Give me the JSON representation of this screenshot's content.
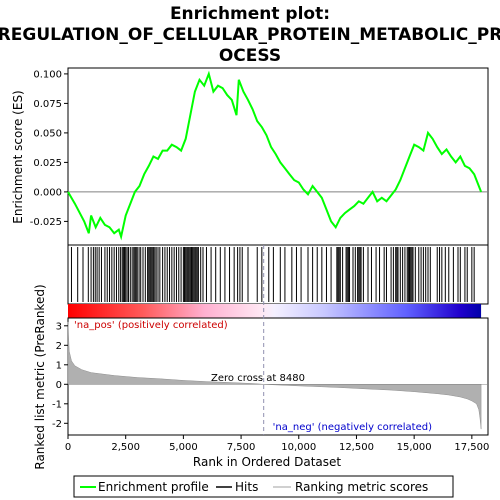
{
  "chart_data": {
    "type": "line",
    "title_lines": [
      "Enrichment plot:",
      "REGULATION_OF_CELLULAR_PROTEIN_METABOLIC_PR",
      "OCESS"
    ],
    "x_label": "Rank in Ordered Dataset",
    "es_panel": {
      "ylabel": "Enrichment score (ES)",
      "ylim": [
        -0.045,
        0.105
      ],
      "yticks": [
        "0.100",
        "0.075",
        "0.050",
        "0.025",
        "0.000",
        "-0.025"
      ],
      "series": [
        {
          "name": "Enrichment profile",
          "color": "#00ff00",
          "x": [
            0,
            300,
            700,
            900,
            1000,
            1200,
            1400,
            1600,
            1800,
            2000,
            2200,
            2300,
            2500,
            2700,
            2900,
            3100,
            3300,
            3500,
            3700,
            3900,
            4100,
            4300,
            4500,
            4700,
            4900,
            5100,
            5300,
            5500,
            5700,
            5900,
            6100,
            6300,
            6500,
            6700,
            6900,
            7100,
            7300,
            7400,
            7600,
            7800,
            8000,
            8200,
            8400,
            8600,
            8800,
            9000,
            9200,
            9400,
            9600,
            9800,
            10000,
            10200,
            10400,
            10600,
            10800,
            11000,
            11200,
            11400,
            11600,
            11800,
            12000,
            12200,
            12400,
            12600,
            12800,
            13000,
            13200,
            13400,
            13600,
            13800,
            14000,
            14200,
            14400,
            14600,
            14800,
            15000,
            15200,
            15400,
            15600,
            15800,
            16000,
            16200,
            16400,
            16600,
            16800,
            17000,
            17200,
            17400,
            17600,
            17800,
            17900
          ],
          "y": [
            0.0,
            -0.01,
            -0.025,
            -0.035,
            -0.02,
            -0.03,
            -0.022,
            -0.028,
            -0.03,
            -0.035,
            -0.032,
            -0.038,
            -0.02,
            -0.01,
            0.0,
            0.005,
            0.015,
            0.022,
            0.03,
            0.028,
            0.035,
            0.035,
            0.04,
            0.038,
            0.035,
            0.045,
            0.065,
            0.085,
            0.095,
            0.09,
            0.1,
            0.085,
            0.09,
            0.088,
            0.082,
            0.078,
            0.065,
            0.095,
            0.085,
            0.078,
            0.07,
            0.06,
            0.055,
            0.048,
            0.038,
            0.032,
            0.025,
            0.02,
            0.015,
            0.01,
            0.008,
            0.002,
            -0.002,
            0.005,
            0.0,
            -0.005,
            -0.015,
            -0.025,
            -0.03,
            -0.022,
            -0.018,
            -0.015,
            -0.012,
            -0.008,
            -0.01,
            -0.005,
            0.0,
            -0.008,
            -0.005,
            -0.008,
            -0.003,
            0.002,
            0.01,
            0.02,
            0.03,
            0.04,
            0.038,
            0.035,
            0.05,
            0.045,
            0.038,
            0.032,
            0.036,
            0.03,
            0.025,
            0.03,
            0.022,
            0.02,
            0.015,
            0.005,
            0.0
          ]
        }
      ]
    },
    "hits": {
      "name": "Hits",
      "positions": [
        150,
        420,
        650,
        880,
        1000,
        1100,
        1180,
        1260,
        1350,
        1450,
        1600,
        1700,
        1800,
        1900,
        2000,
        2100,
        2200,
        2280,
        2350,
        2400,
        2450,
        2500,
        2560,
        2620,
        2700,
        2780,
        2850,
        2900,
        2950,
        3000,
        3080,
        3150,
        3250,
        3350,
        3450,
        3500,
        3550,
        3600,
        3650,
        3700,
        3760,
        3820,
        3900,
        3980,
        4100,
        4200,
        4300,
        4400,
        4500,
        4600,
        4700,
        4800,
        4900,
        5000,
        5050,
        5100,
        5150,
        5200,
        5250,
        5300,
        5350,
        5400,
        5450,
        5500,
        5550,
        5600,
        5650,
        5750,
        5850,
        6000,
        6200,
        6400,
        6600,
        6800,
        7000,
        7200,
        7350,
        7450,
        7550,
        7800,
        8200,
        8400,
        8700,
        8900,
        9200,
        9400,
        9700,
        9900,
        10100,
        10400,
        10600,
        10800,
        11000,
        11200,
        11400,
        11650,
        11700,
        11750,
        11800,
        11900,
        12050,
        12100,
        12150,
        12200,
        12350,
        12450,
        12550,
        12600,
        12650,
        12700,
        12800,
        13000,
        13150,
        13350,
        13500,
        13700,
        13800,
        14000,
        14100,
        14200,
        14250,
        14300,
        14400,
        14500,
        14600,
        14700,
        14750,
        14800,
        14850,
        14900,
        14950,
        15050,
        15200,
        15300,
        15400,
        15500,
        15600,
        15700,
        16000,
        16100,
        16200,
        16350,
        16500,
        16700,
        16900,
        17000,
        17200,
        17300,
        17500,
        17600
      ]
    },
    "metric_panel": {
      "ylabel": "Ranked list metric (PreRanked)",
      "ylim": [
        -2.6,
        3.4
      ],
      "yticks": [
        "3",
        "2",
        "1",
        "0",
        "-1",
        "-2"
      ],
      "x": [
        0,
        50,
        150,
        300,
        600,
        1000,
        2000,
        3000,
        4000,
        5000,
        6000,
        7000,
        8000,
        8480,
        9000,
        10000,
        11000,
        12000,
        13000,
        14000,
        15000,
        16000,
        16500,
        17000,
        17300,
        17500,
        17700,
        17800,
        17850,
        17900
      ],
      "values": [
        3.2,
        1.7,
        1.2,
        0.95,
        0.75,
        0.6,
        0.45,
        0.35,
        0.28,
        0.2,
        0.14,
        0.09,
        0.04,
        0.0,
        -0.03,
        -0.08,
        -0.13,
        -0.18,
        -0.24,
        -0.3,
        -0.38,
        -0.48,
        -0.55,
        -0.65,
        -0.75,
        -0.85,
        -1.0,
        -1.3,
        -1.7,
        -2.3
      ],
      "zero_cross_label": "Zero cross at 8480",
      "zero_cross_value": 8480,
      "pos_label": "'na_pos' (positively correlated)",
      "neg_label": "'na_neg' (negatively correlated)",
      "pos_color": "#cc0000",
      "neg_color": "#0000cc"
    },
    "xlim": [
      0,
      18200
    ],
    "xticks": [
      "0",
      "2,500",
      "5,000",
      "7,500",
      "10,000",
      "12,500",
      "15,000",
      "17,500"
    ],
    "xtick_values": [
      0,
      2500,
      5000,
      7500,
      10000,
      12500,
      15000,
      17500
    ],
    "legend": {
      "placement": "bottom",
      "items": [
        {
          "label": "Enrichment profile",
          "color": "#00ff00"
        },
        {
          "label": "Hits",
          "color": "#000000"
        },
        {
          "label": "Ranking metric scores",
          "color": "#c0c0c0"
        }
      ]
    }
  }
}
